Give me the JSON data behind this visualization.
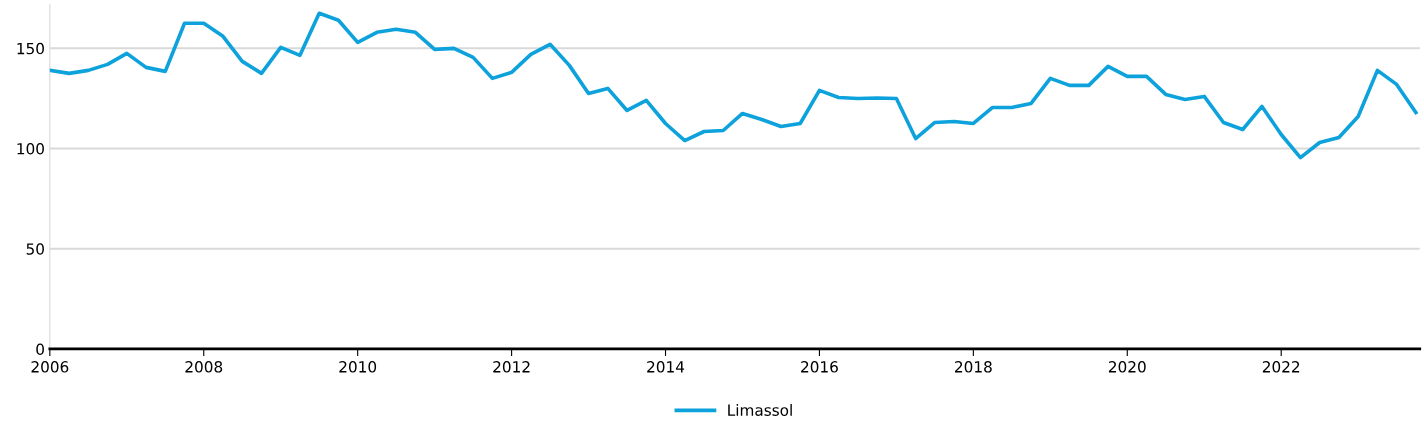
{
  "chart_data": {
    "type": "line",
    "x": [
      2006.0,
      2006.25,
      2006.5,
      2006.75,
      2007.0,
      2007.25,
      2007.5,
      2007.75,
      2008.0,
      2008.25,
      2008.5,
      2008.75,
      2009.0,
      2009.25,
      2009.5,
      2009.75,
      2010.0,
      2010.25,
      2010.5,
      2010.75,
      2011.0,
      2011.25,
      2011.5,
      2011.75,
      2012.0,
      2012.25,
      2012.5,
      2012.75,
      2013.0,
      2013.25,
      2013.5,
      2013.75,
      2014.0,
      2014.25,
      2014.5,
      2014.75,
      2015.0,
      2015.25,
      2015.5,
      2015.75,
      2016.0,
      2016.25,
      2016.5,
      2016.75,
      2017.0,
      2017.25,
      2017.5,
      2017.75,
      2018.0,
      2018.25,
      2018.5,
      2018.75,
      2019.0,
      2019.25,
      2019.5,
      2019.75,
      2020.0,
      2020.25,
      2020.5,
      2020.75,
      2021.0,
      2021.25,
      2021.5,
      2021.75,
      2022.0,
      2022.25,
      2022.5,
      2022.75,
      2023.0,
      2023.25,
      2023.5,
      2023.75
    ],
    "series": [
      {
        "name": "Limassol",
        "color": "#0ea2dc",
        "values": [
          139,
          137.5,
          139,
          142,
          147.5,
          140.5,
          138.5,
          162.5,
          162.5,
          156,
          143.5,
          137.5,
          150.5,
          146.5,
          167.5,
          164,
          153,
          158,
          159.5,
          158,
          149.5,
          150,
          145.5,
          135,
          138,
          147,
          152,
          141.5,
          127.5,
          130,
          119,
          124,
          112.5,
          104,
          108.5,
          109,
          117.5,
          114.5,
          111,
          112.5,
          129,
          125.5,
          125,
          125.2,
          125,
          105,
          113,
          113.5,
          112.5,
          120.5,
          120.5,
          122.5,
          135,
          131.5,
          131.5,
          141,
          136,
          136,
          127,
          124.5,
          126,
          113,
          109.5,
          121,
          107,
          95.5,
          103,
          105.5,
          116,
          139,
          132,
          118
        ]
      }
    ],
    "xlim": [
      2006,
      2023.8
    ],
    "xticks": [
      2006,
      2008,
      2010,
      2012,
      2014,
      2016,
      2018,
      2020,
      2022
    ],
    "ylim": [
      0,
      172
    ],
    "yticks": [
      0,
      50,
      100,
      150
    ],
    "grid": "y",
    "legend": "bottom",
    "marker": "none",
    "line_style": "solid"
  }
}
